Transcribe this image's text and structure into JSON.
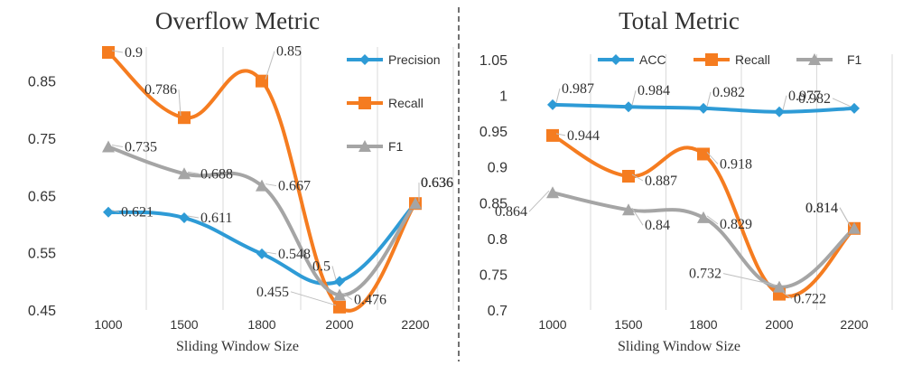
{
  "chart_data": [
    {
      "type": "line",
      "title": "Overflow Metric",
      "xlabel": "Sliding Window Size",
      "ylabel": "",
      "categories": [
        "1000",
        "1500",
        "1800",
        "2000",
        "2200"
      ],
      "ylim": [
        0.45,
        0.9
      ],
      "yticks": [
        "0.45",
        "0.55",
        "0.65",
        "0.75",
        "0.85"
      ],
      "ytick_values": [
        0.45,
        0.55,
        0.65,
        0.75,
        0.85
      ],
      "legend_position": "right",
      "series": [
        {
          "name": "Precision",
          "color": "#2e9bd6",
          "marker": "diamond",
          "values": [
            0.621,
            0.611,
            0.548,
            0.5,
            0.636
          ],
          "labels": [
            "0.621",
            "0.611",
            "0.548",
            "0.5",
            "0.636"
          ]
        },
        {
          "name": "Recall",
          "color": "#f57c20",
          "marker": "square",
          "values": [
            0.9,
            0.786,
            0.85,
            0.455,
            0.636
          ],
          "labels": [
            "0.9",
            "0.786",
            "0.85",
            "0.455",
            "0.636"
          ]
        },
        {
          "name": "F1",
          "color": "#a5a5a5",
          "marker": "triangle",
          "values": [
            0.735,
            0.688,
            0.667,
            0.476,
            0.636
          ],
          "labels": [
            "0.735",
            "0.688",
            "0.667",
            "0.476",
            "0.636"
          ]
        }
      ]
    },
    {
      "type": "line",
      "title": "Total Metric",
      "xlabel": "Sliding Window Size",
      "ylabel": "",
      "categories": [
        "1000",
        "1500",
        "1800",
        "2000",
        "2200"
      ],
      "ylim": [
        0.7,
        1.05
      ],
      "yticks": [
        "0.7",
        "0.75",
        "0.8",
        "0.85",
        "0.9",
        "0.95",
        "1",
        "1.05"
      ],
      "ytick_values": [
        0.7,
        0.75,
        0.8,
        0.85,
        0.9,
        0.95,
        1.0,
        1.05
      ],
      "legend_position": "top",
      "series": [
        {
          "name": "ACC",
          "color": "#2e9bd6",
          "marker": "diamond",
          "values": [
            0.987,
            0.984,
            0.982,
            0.977,
            0.982
          ],
          "labels": [
            "0.987",
            "0.984",
            "0.982",
            "0.977",
            "0.982"
          ]
        },
        {
          "name": "Recall",
          "color": "#f57c20",
          "marker": "square",
          "values": [
            0.944,
            0.887,
            0.918,
            0.722,
            0.814
          ],
          "labels": [
            "0.944",
            "0.887",
            "0.918",
            "0.722",
            "0.814"
          ]
        },
        {
          "name": "F1",
          "color": "#a5a5a5",
          "marker": "triangle",
          "values": [
            0.864,
            0.84,
            0.829,
            0.732,
            0.814
          ],
          "labels": [
            "0.864",
            "0.84",
            "0.829",
            "0.732",
            "0.814"
          ]
        }
      ]
    }
  ]
}
